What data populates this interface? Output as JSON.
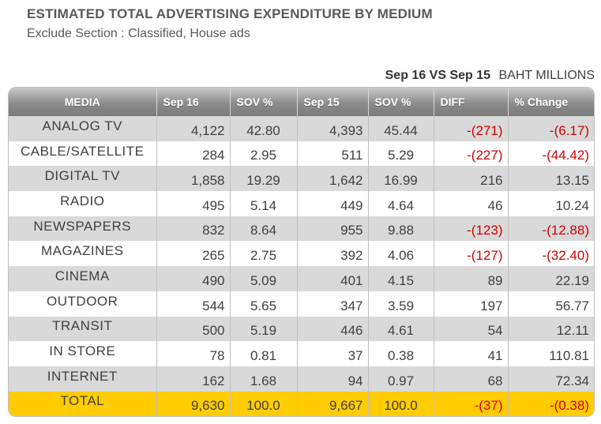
{
  "header": {
    "title": "ESTIMATED TOTAL ADVERTISING EXPENDITURE BY MEDIUM",
    "subtitle": "Exclude Section : Classified, House ads",
    "comparison": "Sep 16 VS Sep 15",
    "unit": "BAHT MILLIONS"
  },
  "table": {
    "columns": [
      "MEDIA",
      "Sep 16",
      "SOV %",
      "Sep 15",
      "SOV %",
      "DIFF",
      "% Change"
    ],
    "rows": [
      {
        "media": "ANALOG   TV",
        "sep16": "4,122",
        "sov16": "42.80",
        "sep15": "4,393",
        "sov15": "45.44",
        "diff": "-(271)",
        "change": "-(6.17)"
      },
      {
        "media": "CABLE/SATELLITE",
        "sep16": "284",
        "sov16": "2.95",
        "sep15": "511",
        "sov15": "5.29",
        "diff": "-(227)",
        "change": "-(44.42)"
      },
      {
        "media": "DIGITAL TV",
        "sep16": "1,858",
        "sov16": "19.29",
        "sep15": "1,642",
        "sov15": "16.99",
        "diff": "216",
        "change": "13.15"
      },
      {
        "media": "RADIO",
        "sep16": "495",
        "sov16": "5.14",
        "sep15": "449",
        "sov15": "4.64",
        "diff": "46",
        "change": "10.24"
      },
      {
        "media": "NEWSPAPERS",
        "sep16": "832",
        "sov16": "8.64",
        "sep15": "955",
        "sov15": "9.88",
        "diff": "-(123)",
        "change": "-(12.88)"
      },
      {
        "media": "MAGAZINES",
        "sep16": "265",
        "sov16": "2.75",
        "sep15": "392",
        "sov15": "4.06",
        "diff": "-(127)",
        "change": "-(32.40)"
      },
      {
        "media": "CINEMA",
        "sep16": "490",
        "sov16": "5.09",
        "sep15": "401",
        "sov15": "4.15",
        "diff": "89",
        "change": "22.19"
      },
      {
        "media": "OUTDOOR",
        "sep16": "544",
        "sov16": "5.65",
        "sep15": "347",
        "sov15": "3.59",
        "diff": "197",
        "change": "56.77"
      },
      {
        "media": "TRANSIT",
        "sep16": "500",
        "sov16": "5.19",
        "sep15": "446",
        "sov15": "4.61",
        "diff": "54",
        "change": "12.11"
      },
      {
        "media": "IN STORE",
        "sep16": "78",
        "sov16": "0.81",
        "sep15": "37",
        "sov15": "0.38",
        "diff": "41",
        "change": "110.81"
      },
      {
        "media": "INTERNET",
        "sep16": "162",
        "sov16": "1.68",
        "sep15": "94",
        "sov15": "0.97",
        "diff": "68",
        "change": "72.34"
      }
    ],
    "total": {
      "media": "TOTAL",
      "sep16": "9,630",
      "sov16": "100.0",
      "sep15": "9,667",
      "sov15": "100.0",
      "diff": "-(37)",
      "change": "-(0.38)"
    }
  },
  "colors": {
    "header_gray": "#8c8c8c",
    "band_gray": "#d9d9d9",
    "total_yellow": "#ffcc00",
    "negative_red": "#d00000"
  }
}
